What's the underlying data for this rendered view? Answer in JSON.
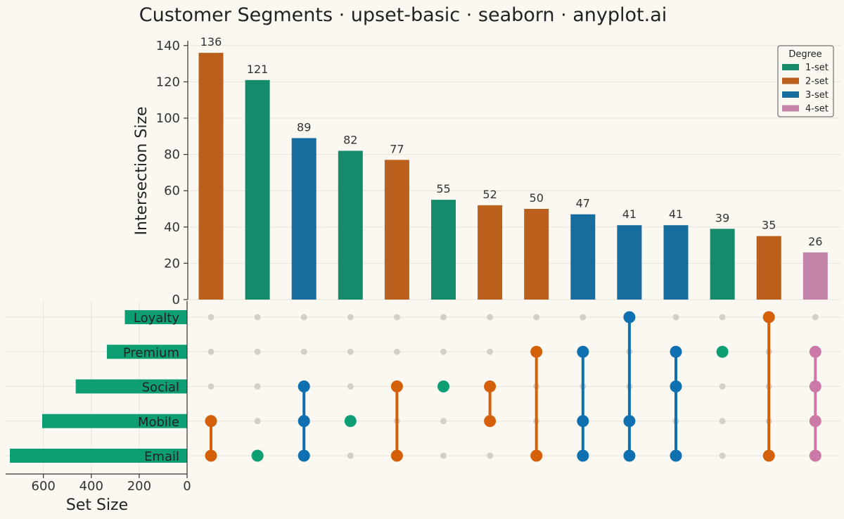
{
  "title": "Customer Segments · upset-basic · seaborn · anyplot.ai",
  "chart_data": {
    "type": "bar",
    "subtype": "upset",
    "sets": [
      "Loyalty",
      "Premium",
      "Social",
      "Mobile",
      "Email"
    ],
    "set_sizes": {
      "Loyalty": 260,
      "Premium": 335,
      "Social": 465,
      "Mobile": 605,
      "Email": 740
    },
    "intersections": [
      {
        "members": [
          "Mobile",
          "Email"
        ],
        "size": 136,
        "degree": "2-set"
      },
      {
        "members": [
          "Email"
        ],
        "size": 121,
        "degree": "1-set"
      },
      {
        "members": [
          "Social",
          "Mobile",
          "Email"
        ],
        "size": 89,
        "degree": "3-set"
      },
      {
        "members": [
          "Mobile"
        ],
        "size": 82,
        "degree": "1-set"
      },
      {
        "members": [
          "Social",
          "Email"
        ],
        "size": 77,
        "degree": "2-set"
      },
      {
        "members": [
          "Social"
        ],
        "size": 55,
        "degree": "1-set"
      },
      {
        "members": [
          "Social",
          "Mobile"
        ],
        "size": 52,
        "degree": "2-set"
      },
      {
        "members": [
          "Premium",
          "Email"
        ],
        "size": 50,
        "degree": "2-set"
      },
      {
        "members": [
          "Premium",
          "Mobile",
          "Email"
        ],
        "size": 47,
        "degree": "3-set"
      },
      {
        "members": [
          "Loyalty",
          "Mobile",
          "Email"
        ],
        "size": 41,
        "degree": "3-set"
      },
      {
        "members": [
          "Premium",
          "Social",
          "Email"
        ],
        "size": 41,
        "degree": "3-set"
      },
      {
        "members": [
          "Premium"
        ],
        "size": 39,
        "degree": "1-set"
      },
      {
        "members": [
          "Loyalty",
          "Email"
        ],
        "size": 35,
        "degree": "2-set"
      },
      {
        "members": [
          "Premium",
          "Social",
          "Mobile",
          "Email"
        ],
        "size": 26,
        "degree": "4-set"
      }
    ],
    "ylabel": "Intersection Size",
    "ylim": [
      0,
      143
    ],
    "yticks": [
      0,
      20,
      40,
      60,
      80,
      100,
      120,
      140
    ],
    "set_size_label": "Set Size",
    "set_size_xlim": [
      0,
      780
    ],
    "set_size_ticks": [
      600,
      400,
      200,
      0
    ],
    "legend": {
      "title": "Degree",
      "entries": [
        "1-set",
        "2-set",
        "3-set",
        "4-set"
      ],
      "placement": "top-right"
    },
    "colors": {
      "bar": {
        "1-set": "#168B6B",
        "2-set": "#BA601C",
        "3-set": "#176D9E",
        "4-set": "#C584AA"
      },
      "dot": {
        "1-set": "#0D9E74",
        "2-set": "#D46009",
        "3-set": "#0E6FB1",
        "4-set": "#CC79A7"
      },
      "set_bar": "#0D9E74",
      "inactive_dot": "#D2D0CA"
    }
  }
}
